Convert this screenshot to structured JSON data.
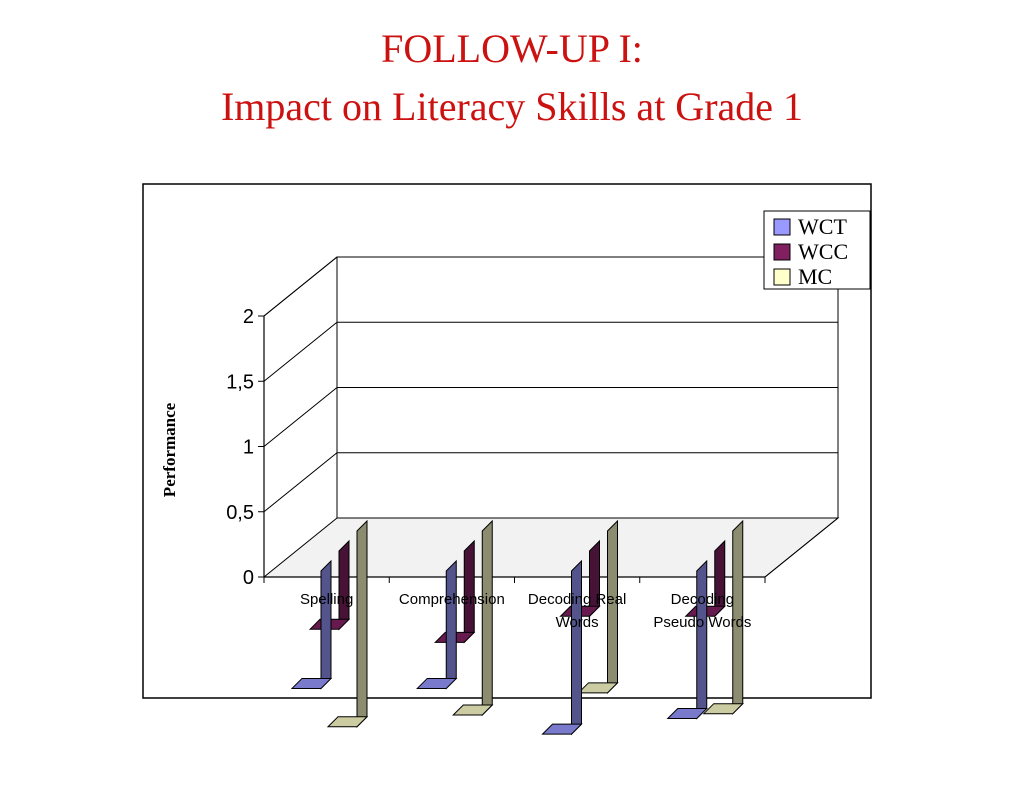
{
  "slide": {
    "title_line1": "FOLLOW-UP I:",
    "title_line2": "Impact on Literacy Skills at Grade 1"
  },
  "colors": {
    "title": "#cc1111",
    "WCT": "#9999ff",
    "WCC": "#802060",
    "MC": "#ffffcc"
  },
  "chart_data": {
    "type": "bar",
    "style": "3d-clustered",
    "title": "",
    "xlabel": "",
    "ylabel": "Performance",
    "ylim": [
      0,
      2
    ],
    "yticks": [
      "0",
      "0,5",
      "1",
      "1,5",
      "2"
    ],
    "categories": [
      [
        "Spelling"
      ],
      [
        "Comprehension"
      ],
      [
        "Decoding Real",
        "Words"
      ],
      [
        "Decoding",
        "Pseudo Words"
      ]
    ],
    "series": [
      {
        "name": "WCT",
        "values": [
          0.9,
          0.9,
          1.25,
          1.13
        ]
      },
      {
        "name": "WCC",
        "values": [
          0.6,
          0.7,
          0.5,
          0.5
        ]
      },
      {
        "name": "MC",
        "values": [
          1.5,
          1.41,
          1.24,
          1.4
        ]
      }
    ],
    "grid": true,
    "legend": "top-right"
  }
}
